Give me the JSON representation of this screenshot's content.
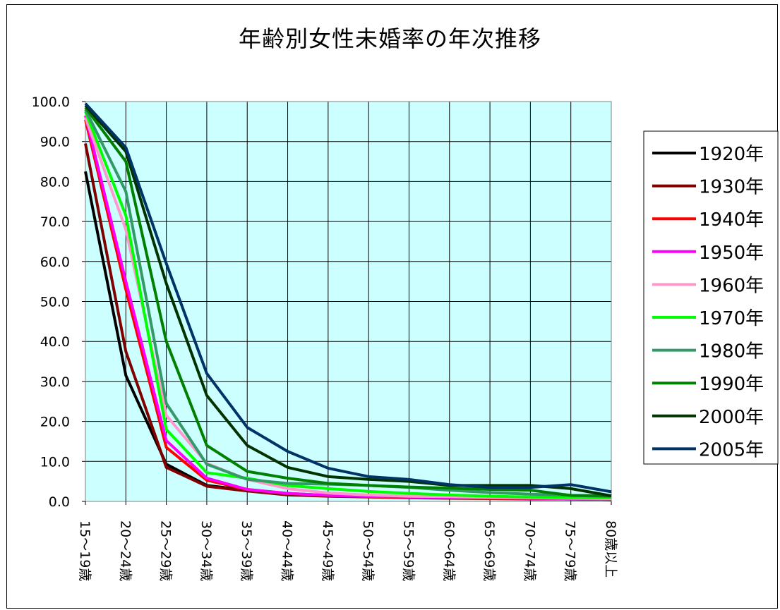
{
  "chart_data": {
    "type": "line",
    "title": "年齢別女性未婚率の年次推移",
    "xlabel": "",
    "ylabel": "",
    "ylim": [
      0,
      100
    ],
    "y_ticks": [
      "0.0",
      "10.0",
      "20.0",
      "30.0",
      "40.0",
      "50.0",
      "60.0",
      "70.0",
      "80.0",
      "90.0",
      "100.0"
    ],
    "categories": [
      "15～19歳",
      "20～24歳",
      "25～29歳",
      "30～34歳",
      "35～39歳",
      "40～44歳",
      "45～49歳",
      "50～54歳",
      "55～59歳",
      "60～64歳",
      "65～69歳",
      "70～74歳",
      "75～79歳",
      "80歳以上"
    ],
    "grid": true,
    "plot_background": "#ccffff",
    "legend_position": "right",
    "series": [
      {
        "name": "1920年",
        "color": "#000000",
        "values": [
          82.5,
          31.5,
          9.3,
          4.0,
          2.8,
          1.8,
          1.5,
          1.2,
          1.0,
          0.9,
          0.8,
          0.7,
          0.6,
          0.5
        ]
      },
      {
        "name": "1930年",
        "color": "#800000",
        "values": [
          89.5,
          37.5,
          8.5,
          3.8,
          2.6,
          1.6,
          1.3,
          1.1,
          0.9,
          0.8,
          0.7,
          0.6,
          0.6,
          0.5
        ]
      },
      {
        "name": "1940年",
        "color": "#ff0000",
        "values": [
          95.5,
          53.0,
          13.5,
          5.3,
          3.0,
          2.0,
          1.5,
          1.2,
          1.0,
          0.9,
          0.8,
          0.7,
          0.6,
          0.5
        ]
      },
      {
        "name": "1950年",
        "color": "#ff00ff",
        "values": [
          96.5,
          55.0,
          15.2,
          5.8,
          3.0,
          2.0,
          1.5,
          1.3,
          1.1,
          1.0,
          0.9,
          0.8,
          0.7,
          0.6
        ]
      },
      {
        "name": "1960年",
        "color": "#ff99cc",
        "values": [
          96.0,
          68.0,
          21.5,
          9.5,
          5.5,
          3.2,
          2.1,
          1.6,
          1.3,
          1.2,
          1.0,
          0.9,
          0.8,
          0.7
        ]
      },
      {
        "name": "1970年",
        "color": "#00ff00",
        "values": [
          97.5,
          71.5,
          18.0,
          7.2,
          5.8,
          4.0,
          3.2,
          2.5,
          2.0,
          1.6,
          1.3,
          1.1,
          1.0,
          0.9
        ]
      },
      {
        "name": "1980年",
        "color": "#339966",
        "values": [
          98.0,
          77.5,
          24.5,
          9.3,
          5.5,
          4.5,
          4.3,
          4.0,
          3.5,
          2.8,
          2.2,
          1.8,
          1.5,
          1.2
        ]
      },
      {
        "name": "1990年",
        "color": "#008000",
        "values": [
          98.5,
          85.0,
          40.0,
          14.0,
          7.5,
          5.8,
          4.5,
          4.0,
          3.6,
          3.3,
          3.0,
          2.8,
          1.5,
          1.4
        ]
      },
      {
        "name": "2000年",
        "color": "#003300",
        "values": [
          99.0,
          87.5,
          54.5,
          26.5,
          14.0,
          8.5,
          6.2,
          5.5,
          5.0,
          4.0,
          4.0,
          4.0,
          3.2,
          1.4
        ]
      },
      {
        "name": "2005年",
        "color": "#003366",
        "values": [
          99.5,
          88.5,
          59.5,
          32.0,
          18.5,
          12.5,
          8.3,
          6.2,
          5.5,
          4.2,
          3.5,
          3.5,
          4.2,
          2.4
        ]
      }
    ]
  }
}
